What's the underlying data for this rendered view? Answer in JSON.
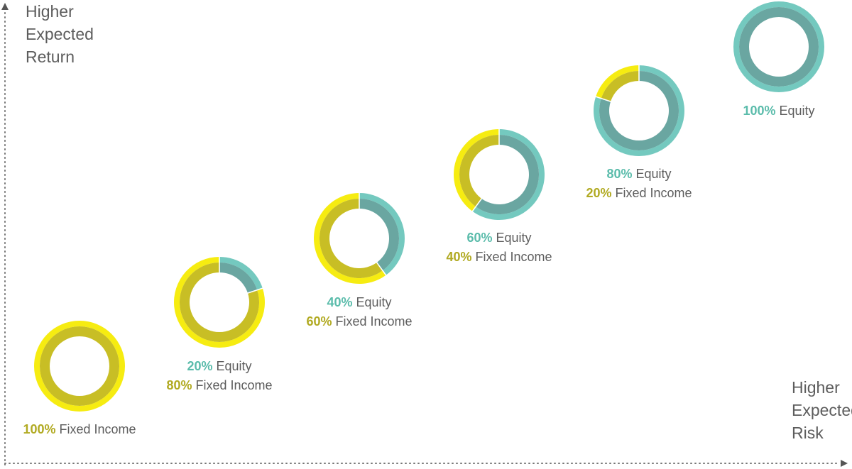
{
  "axes": {
    "y_title": [
      "Higher",
      "Expected",
      "Return"
    ],
    "x_title": [
      "Higher",
      "Expected",
      "Risk"
    ]
  },
  "colors": {
    "equity_outer": "#74c9bf",
    "equity_inner": "#6aa6a1",
    "fixed_outer": "#f6ec11",
    "fixed_inner": "#c8be25",
    "equity_text": "#5bbcab",
    "fixed_text": "#b1aa22",
    "label_text": "#5d5d5d",
    "axis": "#777777"
  },
  "chart_data": {
    "type": "pie",
    "title": "",
    "xlabel": "Higher Expected Risk",
    "ylabel": "Higher Expected Return",
    "categories": [
      "Equity",
      "Fixed Income"
    ],
    "portfolios": [
      {
        "equity": 0,
        "fixed_income": 100,
        "lines": [
          {
            "pct": "100%",
            "text": "Fixed Income",
            "kind": "fixed"
          }
        ]
      },
      {
        "equity": 20,
        "fixed_income": 80,
        "lines": [
          {
            "pct": "20%",
            "text": "Equity",
            "kind": "equity"
          },
          {
            "pct": "80%",
            "text": "Fixed Income",
            "kind": "fixed"
          }
        ]
      },
      {
        "equity": 40,
        "fixed_income": 60,
        "lines": [
          {
            "pct": "40%",
            "text": "Equity",
            "kind": "equity"
          },
          {
            "pct": "60%",
            "text": "Fixed Income",
            "kind": "fixed"
          }
        ]
      },
      {
        "equity": 60,
        "fixed_income": 40,
        "lines": [
          {
            "pct": "60%",
            "text": "Equity",
            "kind": "equity"
          },
          {
            "pct": "40%",
            "text": "Fixed Income",
            "kind": "fixed"
          }
        ]
      },
      {
        "equity": 80,
        "fixed_income": 20,
        "lines": [
          {
            "pct": "80%",
            "text": "Equity",
            "kind": "equity"
          },
          {
            "pct": "20%",
            "text": "Fixed Income",
            "kind": "fixed"
          }
        ]
      },
      {
        "equity": 100,
        "fixed_income": 0,
        "lines": [
          {
            "pct": "100%",
            "text": "Equity",
            "kind": "equity"
          }
        ]
      }
    ]
  }
}
